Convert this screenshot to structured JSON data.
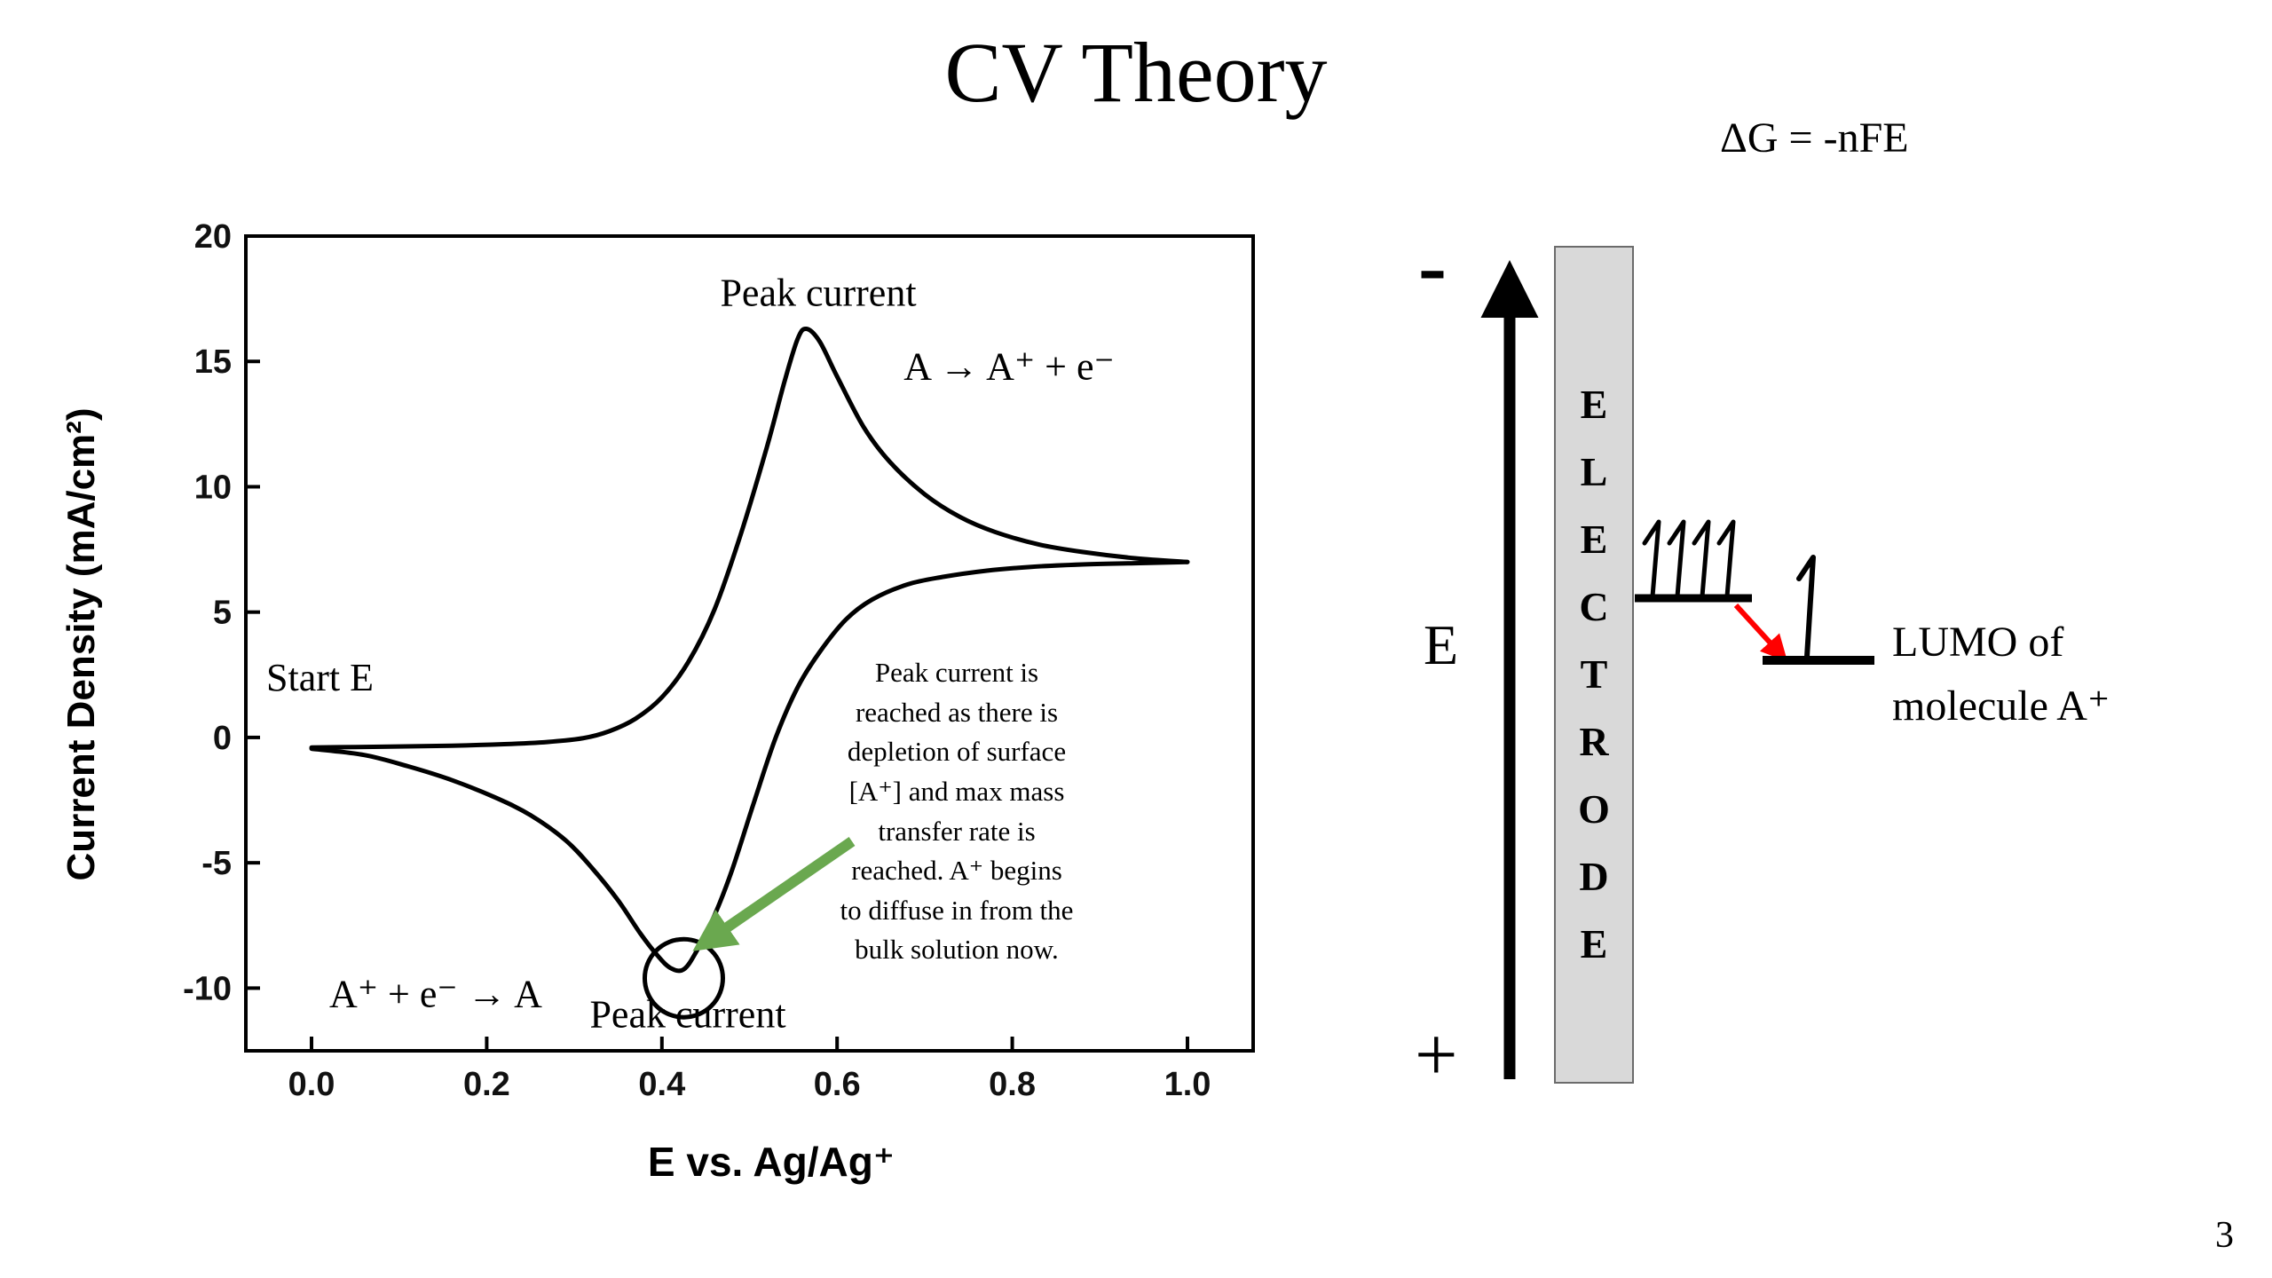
{
  "slide": {
    "title": "CV Theory",
    "equation": "ΔG = -nFE",
    "page_number": "3"
  },
  "chart_data": {
    "type": "line",
    "title": "",
    "xlabel": "E vs. Ag/Ag⁺",
    "ylabel": "Current Density (mA/cm²)",
    "xlim": [
      -0.075,
      1.075
    ],
    "ylim": [
      -12.5,
      20
    ],
    "grid": false,
    "x_ticks": [
      0.0,
      0.2,
      0.4,
      0.6,
      0.8,
      1.0
    ],
    "x_tick_labels": [
      "0.0",
      "0.2",
      "0.4",
      "0.6",
      "0.8",
      "1.0"
    ],
    "y_ticks": [
      20,
      15,
      10,
      5,
      0,
      -5,
      -10
    ],
    "y_tick_labels": [
      "20",
      "15",
      "10",
      "5",
      "0",
      "-5",
      "-10"
    ],
    "series": [
      {
        "name": "forward-anodic-sweep",
        "points": [
          [
            0.0,
            -0.4
          ],
          [
            0.08,
            -0.37
          ],
          [
            0.16,
            -0.33
          ],
          [
            0.22,
            -0.27
          ],
          [
            0.27,
            -0.18
          ],
          [
            0.31,
            -0.03
          ],
          [
            0.34,
            0.25
          ],
          [
            0.37,
            0.75
          ],
          [
            0.4,
            1.6
          ],
          [
            0.43,
            3.0
          ],
          [
            0.46,
            5.1
          ],
          [
            0.49,
            8.1
          ],
          [
            0.52,
            11.6
          ],
          [
            0.54,
            14.2
          ],
          [
            0.555,
            15.9
          ],
          [
            0.565,
            16.3
          ],
          [
            0.58,
            15.8
          ],
          [
            0.6,
            14.4
          ],
          [
            0.63,
            12.4
          ],
          [
            0.66,
            11.0
          ],
          [
            0.7,
            9.7
          ],
          [
            0.74,
            8.8
          ],
          [
            0.78,
            8.2
          ],
          [
            0.83,
            7.7
          ],
          [
            0.88,
            7.4
          ],
          [
            0.94,
            7.15
          ],
          [
            1.0,
            7.0
          ]
        ]
      },
      {
        "name": "reverse-cathodic-sweep",
        "points": [
          [
            1.0,
            7.0
          ],
          [
            0.94,
            6.95
          ],
          [
            0.88,
            6.9
          ],
          [
            0.82,
            6.8
          ],
          [
            0.77,
            6.65
          ],
          [
            0.72,
            6.4
          ],
          [
            0.68,
            6.1
          ],
          [
            0.64,
            5.5
          ],
          [
            0.61,
            4.7
          ],
          [
            0.58,
            3.4
          ],
          [
            0.555,
            2.0
          ],
          [
            0.53,
            0.0
          ],
          [
            0.505,
            -2.6
          ],
          [
            0.48,
            -5.3
          ],
          [
            0.46,
            -7.1
          ],
          [
            0.44,
            -8.5
          ],
          [
            0.425,
            -9.25
          ],
          [
            0.41,
            -9.2
          ],
          [
            0.395,
            -8.7
          ],
          [
            0.375,
            -7.8
          ],
          [
            0.35,
            -6.5
          ],
          [
            0.32,
            -5.2
          ],
          [
            0.29,
            -4.1
          ],
          [
            0.25,
            -3.1
          ],
          [
            0.21,
            -2.4
          ],
          [
            0.16,
            -1.7
          ],
          [
            0.11,
            -1.15
          ],
          [
            0.06,
            -0.7
          ],
          [
            0.0,
            -0.45
          ]
        ]
      }
    ],
    "annotations": {
      "anodic_peak_label": "Peak current",
      "anodic_reaction": "A → A⁺ + e⁻",
      "start_label": "Start E",
      "cathodic_reaction": "A⁺ + e⁻ → A",
      "cathodic_peak_label": "Peak current",
      "note": "Peak current is\nreached as there is\ndepletion of surface\n[A⁺] and max mass\ntransfer rate is\nreached. A⁺ begins\nto diffuse in from the\nbulk solution now.",
      "anodic_peak": {
        "x": 0.565,
        "y": 16.3
      },
      "cathodic_peak": {
        "x": 0.425,
        "y": -9.25
      }
    },
    "colors": {
      "curve": "#000000",
      "annotation_arrow": "#6aa84f",
      "circle": "#000000"
    }
  },
  "energy_diagram": {
    "minus_label": "-",
    "plus_label": "+",
    "axis_label": "E",
    "electrode_label": "E\nL\nE\nC\nT\nR\nO\nD\nE",
    "lumo_label": "LUMO of\nmolecule A⁺",
    "electron_count_electrode": 4,
    "electron_count_lumo": 1,
    "colors": {
      "electrode_fill": "#d9d9d9",
      "electrode_border": "#6b6b6b",
      "transfer_arrow": "#ff0000",
      "axis_arrow": "#000000"
    }
  }
}
